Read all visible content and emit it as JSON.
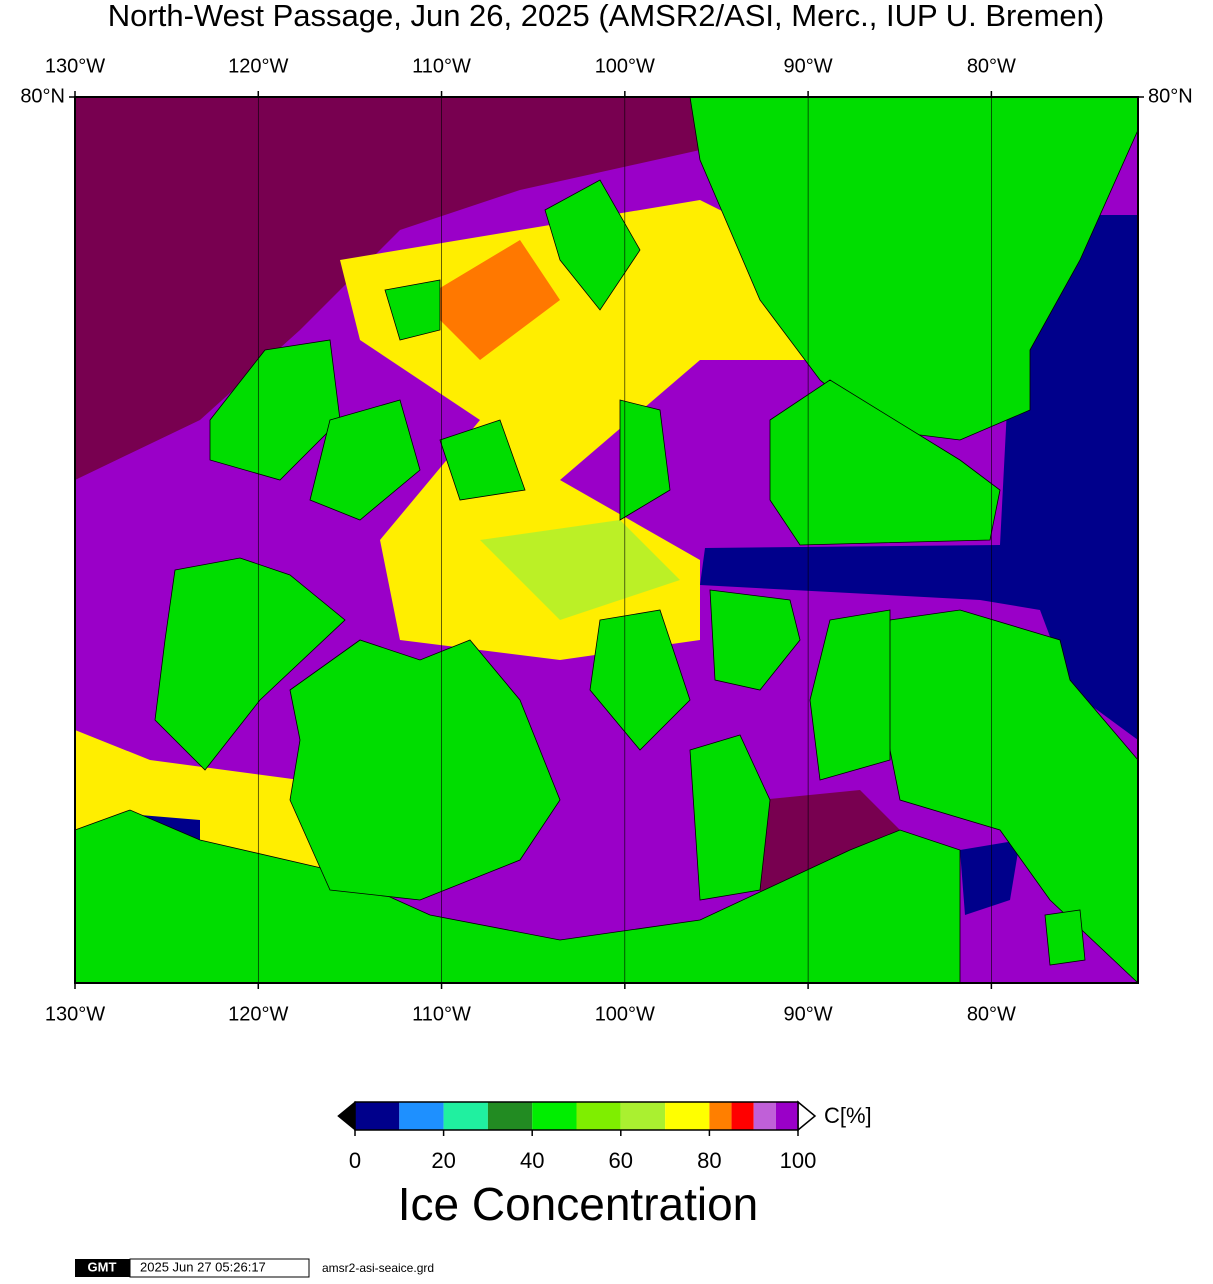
{
  "title": "North-West Passage, Jun 26, 2025 (AMSR2/ASI, Merc., IUP U. Bremen)",
  "map": {
    "lon_range": [
      -130,
      -72
    ],
    "lon_ticks": [
      {
        "value": -130,
        "label": "130°W"
      },
      {
        "value": -120,
        "label": "120°W"
      },
      {
        "value": -110,
        "label": "110°W"
      },
      {
        "value": -100,
        "label": "100°W"
      },
      {
        "value": -90,
        "label": "90°W"
      },
      {
        "value": -80,
        "label": "80°W"
      }
    ],
    "lat_ticks": [
      {
        "value": 80,
        "label": "80°N"
      }
    ]
  },
  "colorbar": {
    "title": "Ice Concentration",
    "unit": "C[%]",
    "range": [
      0,
      100
    ],
    "ticks": [
      0,
      20,
      40,
      60,
      80,
      100
    ],
    "segments": [
      {
        "from": 0,
        "to": 10,
        "color": "#00008b"
      },
      {
        "from": 10,
        "to": 20,
        "color": "#1e90ff"
      },
      {
        "from": 20,
        "to": 30,
        "color": "#20f0a0"
      },
      {
        "from": 30,
        "to": 40,
        "color": "#228b22"
      },
      {
        "from": 40,
        "to": 50,
        "color": "#00ee00"
      },
      {
        "from": 50,
        "to": 60,
        "color": "#7fee00"
      },
      {
        "from": 60,
        "to": 70,
        "color": "#aaf030"
      },
      {
        "from": 70,
        "to": 80,
        "color": "#ffff00"
      },
      {
        "from": 80,
        "to": 85,
        "color": "#ff7f00"
      },
      {
        "from": 85,
        "to": 90,
        "color": "#ff0000"
      },
      {
        "from": 90,
        "to": 95,
        "color": "#c060d8"
      },
      {
        "from": 95,
        "to": 100,
        "color": "#9a00c8"
      }
    ]
  },
  "footer": {
    "logo": "GMT",
    "timestamp": "2025 Jun 27 05:26:17",
    "file": "amsr2-asi-seaice.grd"
  }
}
